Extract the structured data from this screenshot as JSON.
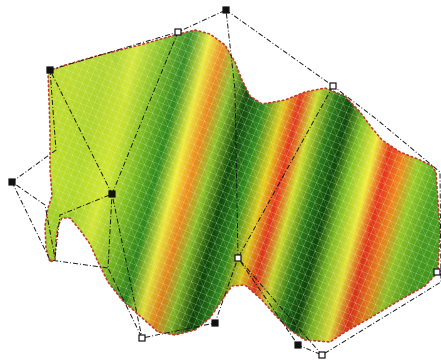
{
  "colors": {
    "background": "#ffffff",
    "mesh_lines": "#d8e8c0",
    "boundary_dots": "#c0392b",
    "control_polygon": "#1a1a1a",
    "handle_fill": "#ffffff",
    "handle_stroke": "#111111",
    "surface_lime": "#c8e22c",
    "surface_yellow": "#f4ef3a",
    "surface_green": "#2f8a1c",
    "surface_dark": "#0f4a0a",
    "surface_orange": "#f08a1c",
    "surface_red": "#e8321c"
  },
  "icons": {
    "control_handle": "control-point-handle-icon"
  }
}
